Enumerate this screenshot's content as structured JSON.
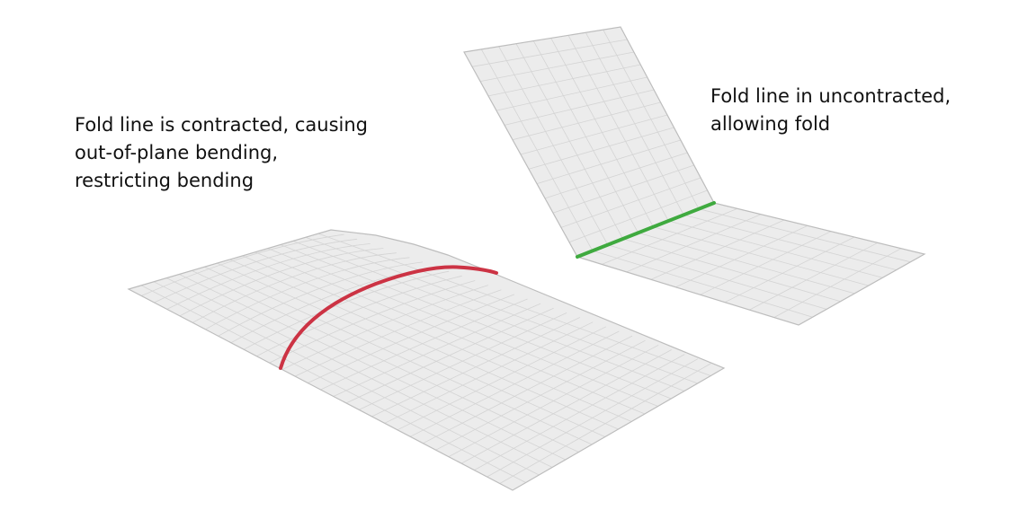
{
  "captions": {
    "contracted": {
      "lines": [
        "Fold line is contracted, causing",
        "out-of-plane bending,",
        "restricting bending"
      ]
    },
    "uncontracted": {
      "lines": [
        "Fold line in uncontracted,",
        "allowing fold"
      ]
    }
  },
  "colors": {
    "background": "#ffffff",
    "sheet_fill": "#ececec",
    "sheet_edge": "#bdbdbd",
    "grid_line": "#d4d4d4",
    "contracted_fold_line": "#cc3344",
    "uncontracted_fold_line": "#3faa3f"
  }
}
